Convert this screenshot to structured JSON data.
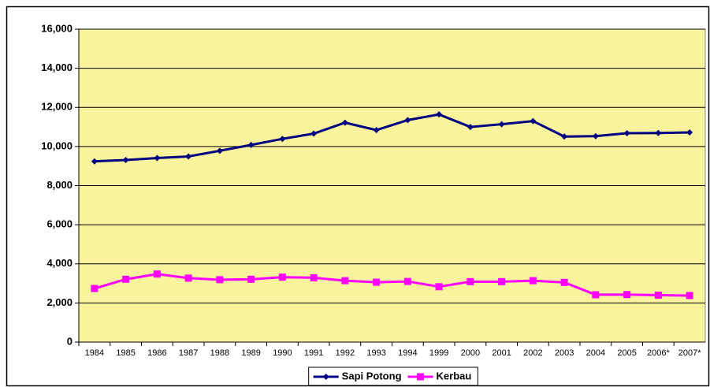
{
  "chart_data": {
    "type": "line",
    "categories": [
      "1984",
      "1985",
      "1986",
      "1987",
      "1988",
      "1989",
      "1990",
      "1991",
      "1992",
      "1993",
      "1994",
      "1999",
      "2000",
      "2001",
      "2002",
      "2003",
      "2004",
      "2005",
      "2006*",
      "2007*"
    ],
    "series": [
      {
        "name": "Sapi Potong",
        "color": "#000080",
        "marker": "diamond",
        "values": [
          9240,
          9310,
          9410,
          9490,
          9780,
          10080,
          10390,
          10660,
          11220,
          10840,
          11350,
          11640,
          11000,
          11140,
          11300,
          10510,
          10530,
          10680,
          10690,
          10720
        ]
      },
      {
        "name": "Kerbau",
        "color": "#ff00ff",
        "marker": "square",
        "values": [
          2740,
          3210,
          3480,
          3270,
          3190,
          3210,
          3320,
          3290,
          3140,
          3060,
          3100,
          2830,
          3090,
          3090,
          3140,
          3050,
          2420,
          2430,
          2400,
          2380
        ]
      }
    ],
    "ylim": [
      0,
      16000
    ],
    "yticks": [
      0,
      {
        "value": 2000,
        "label": "2,000"
      },
      {
        "value": 4000,
        "label": "4,000"
      },
      {
        "value": 6000,
        "label": "6,000"
      },
      {
        "value": 8000,
        "label": "8,000"
      },
      {
        "value": 10000,
        "label": "10,000"
      },
      {
        "value": 12000,
        "label": "12,000"
      },
      {
        "value": 14000,
        "label": "14,000"
      },
      {
        "value": 16000,
        "label": "16,000"
      }
    ],
    "grid": true,
    "plot_background": "#faf39e",
    "legend": "bottom"
  }
}
